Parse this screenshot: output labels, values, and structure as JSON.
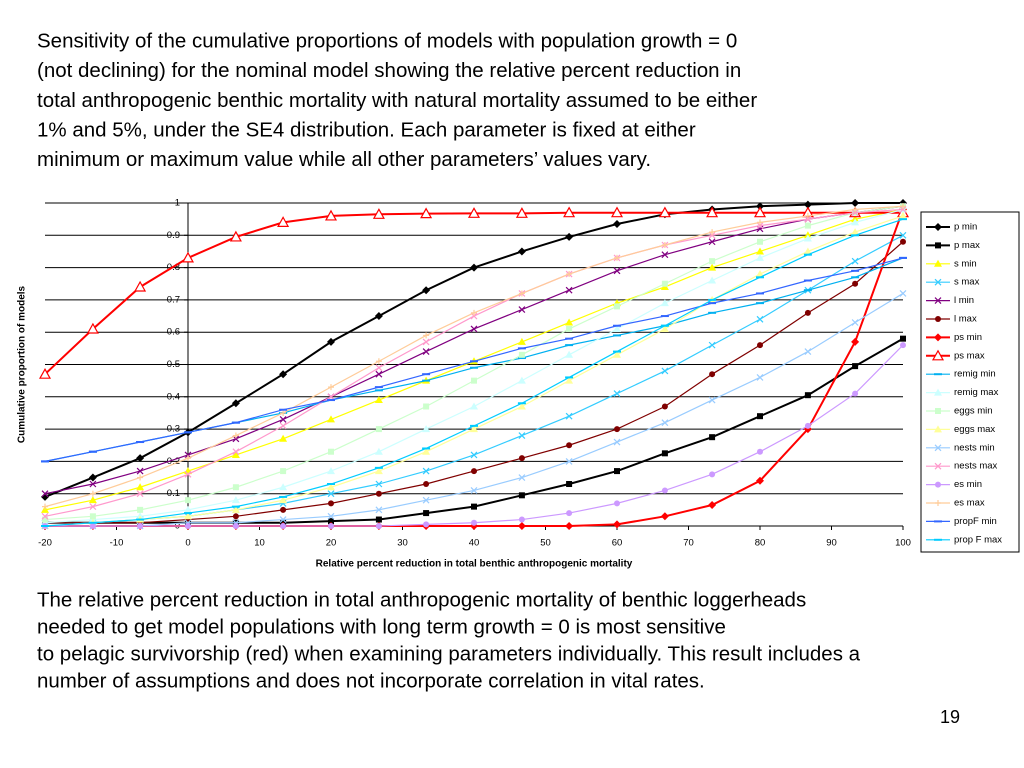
{
  "title_lines": [
    "Sensitivity of the cumulative proportions of models with population growth = 0",
    "(not declining) for the nominal model showing the relative percent reduction in",
    "total anthropogenic benthic mortality with natural mortality assumed to be either",
    "1% and 5%, under the SE4 distribution.  Each parameter is fixed at either",
    "minimum or maximum value while all other parameters’ values vary."
  ],
  "note_lines": [
    "The relative percent reduction in total anthropogenic mortality of benthic loggerheads",
    "needed to get model populations with long term growth = 0  is most sensitive",
    "to pelagic survivorship (red) when examining parameters individually. This result includes a",
    "number of assumptions and does not incorporate correlation in vital rates."
  ],
  "page_number": "19",
  "chart_data": {
    "type": "line",
    "x_label": "Relative percent reduction in total benthic anthropogenic mortality",
    "y_label": "Cumulative proportion of models",
    "x": [
      -20,
      -13.3,
      -6.7,
      0,
      6.7,
      13.3,
      20,
      26.7,
      33.3,
      40,
      46.7,
      53.3,
      60,
      66.7,
      73.3,
      80,
      86.7,
      93.3,
      100
    ],
    "xlim": [
      -20,
      100
    ],
    "xticks": [
      -20,
      -10,
      0,
      10,
      20,
      30,
      40,
      50,
      60,
      70,
      80,
      90,
      100
    ],
    "ylim": [
      0,
      1
    ],
    "yticks": [
      0,
      0.1,
      0.2,
      0.3,
      0.4,
      0.5,
      0.6,
      0.7,
      0.8,
      0.9,
      1
    ],
    "grid": true,
    "legend": "right",
    "series": [
      {
        "name": "p min",
        "color": "#000000",
        "marker": "diamond",
        "width": 2,
        "values": [
          0.09,
          0.15,
          0.21,
          0.29,
          0.38,
          0.47,
          0.57,
          0.65,
          0.73,
          0.8,
          0.85,
          0.895,
          0.935,
          0.965,
          0.98,
          0.99,
          0.995,
          1,
          1
        ]
      },
      {
        "name": "p max",
        "color": "#000000",
        "marker": "square",
        "width": 2,
        "values": [
          0.01,
          0.01,
          0.01,
          0.01,
          0.01,
          0.01,
          0.015,
          0.02,
          0.04,
          0.06,
          0.095,
          0.13,
          0.17,
          0.225,
          0.275,
          0.34,
          0.405,
          0.495,
          0.58
        ]
      },
      {
        "name": "s min",
        "color": "#ffff00",
        "marker": "triangle",
        "width": 1.2,
        "values": [
          0.05,
          0.08,
          0.12,
          0.17,
          0.22,
          0.27,
          0.33,
          0.39,
          0.45,
          0.51,
          0.57,
          0.63,
          0.69,
          0.74,
          0.8,
          0.85,
          0.9,
          0.95,
          0.98
        ]
      },
      {
        "name": "s max",
        "color": "#33ccff",
        "marker": "x",
        "width": 1.2,
        "values": [
          0.01,
          0.01,
          0.02,
          0.03,
          0.05,
          0.07,
          0.1,
          0.13,
          0.17,
          0.22,
          0.28,
          0.34,
          0.41,
          0.48,
          0.56,
          0.64,
          0.73,
          0.82,
          0.9
        ]
      },
      {
        "name": "l min",
        "color": "#800080",
        "marker": "x",
        "width": 1.2,
        "values": [
          0.1,
          0.13,
          0.17,
          0.22,
          0.27,
          0.33,
          0.4,
          0.47,
          0.54,
          0.61,
          0.67,
          0.73,
          0.79,
          0.84,
          0.88,
          0.92,
          0.95,
          0.97,
          0.99
        ]
      },
      {
        "name": "l max",
        "color": "#800000",
        "marker": "circle",
        "width": 1.2,
        "values": [
          0.01,
          0.01,
          0.01,
          0.02,
          0.03,
          0.05,
          0.07,
          0.1,
          0.13,
          0.17,
          0.21,
          0.25,
          0.3,
          0.37,
          0.47,
          0.56,
          0.66,
          0.75,
          0.88
        ]
      },
      {
        "name": "ps min",
        "color": "#ff0000",
        "marker": "diamond",
        "width": 2,
        "values": [
          0,
          0,
          0,
          0,
          0,
          0,
          0,
          0,
          0,
          0,
          0,
          0,
          0.005,
          0.03,
          0.065,
          0.14,
          0.3,
          0.57,
          0.98
        ]
      },
      {
        "name": "ps max",
        "color": "#ff0000",
        "marker": "triangle-open",
        "width": 2,
        "values": [
          0.47,
          0.61,
          0.74,
          0.83,
          0.895,
          0.94,
          0.96,
          0.965,
          0.967,
          0.968,
          0.968,
          0.97,
          0.97,
          0.97,
          0.97,
          0.97,
          0.97,
          0.97,
          0.97
        ]
      },
      {
        "name": "remig min",
        "color": "#00b0f0",
        "marker": "dash",
        "width": 1.2,
        "values": [
          0.2,
          0.23,
          0.26,
          0.29,
          0.32,
          0.35,
          0.39,
          0.42,
          0.45,
          0.49,
          0.52,
          0.56,
          0.59,
          0.62,
          0.66,
          0.69,
          0.73,
          0.77,
          0.83
        ]
      },
      {
        "name": "remig max",
        "color": "#ccffff",
        "marker": "triangle",
        "width": 1.2,
        "values": [
          0.01,
          0.02,
          0.03,
          0.05,
          0.08,
          0.12,
          0.17,
          0.23,
          0.3,
          0.37,
          0.45,
          0.53,
          0.61,
          0.69,
          0.76,
          0.83,
          0.89,
          0.94,
          0.98
        ]
      },
      {
        "name": "eggs min",
        "color": "#ccffcc",
        "marker": "square",
        "width": 1.2,
        "values": [
          0.02,
          0.03,
          0.05,
          0.08,
          0.12,
          0.17,
          0.23,
          0.3,
          0.37,
          0.45,
          0.53,
          0.61,
          0.68,
          0.75,
          0.82,
          0.88,
          0.93,
          0.97,
          0.99
        ]
      },
      {
        "name": "eggs max",
        "color": "#ffff99",
        "marker": "triangle",
        "width": 1.2,
        "values": [
          0,
          0.01,
          0.02,
          0.03,
          0.05,
          0.08,
          0.12,
          0.17,
          0.23,
          0.3,
          0.37,
          0.45,
          0.53,
          0.61,
          0.7,
          0.78,
          0.85,
          0.91,
          0.96
        ]
      },
      {
        "name": "nests min",
        "color": "#99ccff",
        "marker": "x",
        "width": 1.2,
        "values": [
          0,
          0,
          0,
          0.01,
          0.01,
          0.02,
          0.03,
          0.05,
          0.08,
          0.11,
          0.15,
          0.2,
          0.26,
          0.32,
          0.39,
          0.46,
          0.54,
          0.63,
          0.72
        ]
      },
      {
        "name": "nests max",
        "color": "#ff99cc",
        "marker": "x",
        "width": 1.2,
        "values": [
          0.03,
          0.06,
          0.1,
          0.16,
          0.23,
          0.31,
          0.4,
          0.49,
          0.57,
          0.65,
          0.72,
          0.78,
          0.83,
          0.87,
          0.9,
          0.93,
          0.95,
          0.97,
          0.98
        ]
      },
      {
        "name": "es min",
        "color": "#cc99ff",
        "marker": "circle",
        "width": 1.2,
        "values": [
          0,
          0,
          0,
          0,
          0,
          0,
          0,
          0,
          0.005,
          0.01,
          0.02,
          0.04,
          0.07,
          0.11,
          0.16,
          0.23,
          0.31,
          0.41,
          0.56
        ]
      },
      {
        "name": "es max",
        "color": "#ffcc99",
        "marker": "plus",
        "width": 1.2,
        "values": [
          0.06,
          0.1,
          0.15,
          0.21,
          0.28,
          0.35,
          0.43,
          0.51,
          0.59,
          0.66,
          0.72,
          0.78,
          0.83,
          0.87,
          0.91,
          0.94,
          0.96,
          0.98,
          0.99
        ]
      },
      {
        "name": "propF min",
        "color": "#3366ff",
        "marker": "dash",
        "width": 1.2,
        "values": [
          0.2,
          0.23,
          0.26,
          0.29,
          0.32,
          0.36,
          0.39,
          0.43,
          0.47,
          0.51,
          0.55,
          0.58,
          0.62,
          0.65,
          0.69,
          0.72,
          0.76,
          0.79,
          0.83
        ]
      },
      {
        "name": "prop F max",
        "color": "#00ccff",
        "marker": "dash",
        "width": 1.2,
        "values": [
          0,
          0.01,
          0.02,
          0.04,
          0.06,
          0.09,
          0.13,
          0.18,
          0.24,
          0.31,
          0.38,
          0.46,
          0.54,
          0.62,
          0.7,
          0.77,
          0.84,
          0.9,
          0.95
        ]
      }
    ]
  }
}
